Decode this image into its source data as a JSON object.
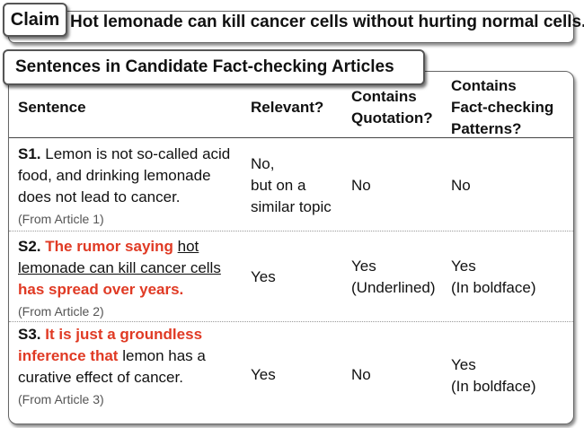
{
  "claim": {
    "tag": "Claim",
    "text": "Hot lemonade can kill cancer cells without hurting normal cells."
  },
  "section": {
    "title": "Sentences in Candidate Fact-checking Articles"
  },
  "table": {
    "headers": {
      "sentence": "Sentence",
      "relevant": "Relevant?",
      "quotation_l1": "Contains",
      "quotation_l2": "Quotation?",
      "patterns_l1": "Contains",
      "patterns_l2": "Fact-checking",
      "patterns_l3": "Patterns?"
    },
    "rows": [
      {
        "id": "S1.",
        "text_l1": "Lemon is not so-called acid",
        "text_l2": "food, and drinking lemonade",
        "text_l3": "does not lead to cancer.",
        "source": "(From Article 1)",
        "relevant_l1": "No,",
        "relevant_l2": "but on a",
        "relevant_l3": "similar topic",
        "quotation": "No",
        "patterns": "No"
      },
      {
        "id": "S2.",
        "text_red1": "The rumor saying",
        "text_ul1": "hot",
        "text_ul2": "lemonade can kill cancer cells",
        "text_red2": "has spread over years.",
        "source": "(From Article 2)",
        "relevant": "Yes",
        "quotation_l1": "Yes",
        "quotation_l2": "(Underlined)",
        "patterns_l1": "Yes",
        "patterns_l2": "(In boldface)"
      },
      {
        "id": "S3.",
        "text_red1": "It is just a groundless",
        "text_red2": "inference that",
        "text_plain1": "lemon has a",
        "text_l3": "curative effect of cancer.",
        "source": "(From Article 3)",
        "relevant": "Yes",
        "quotation": "No",
        "patterns_l1": "Yes",
        "patterns_l2": "(In boldface)"
      }
    ]
  }
}
